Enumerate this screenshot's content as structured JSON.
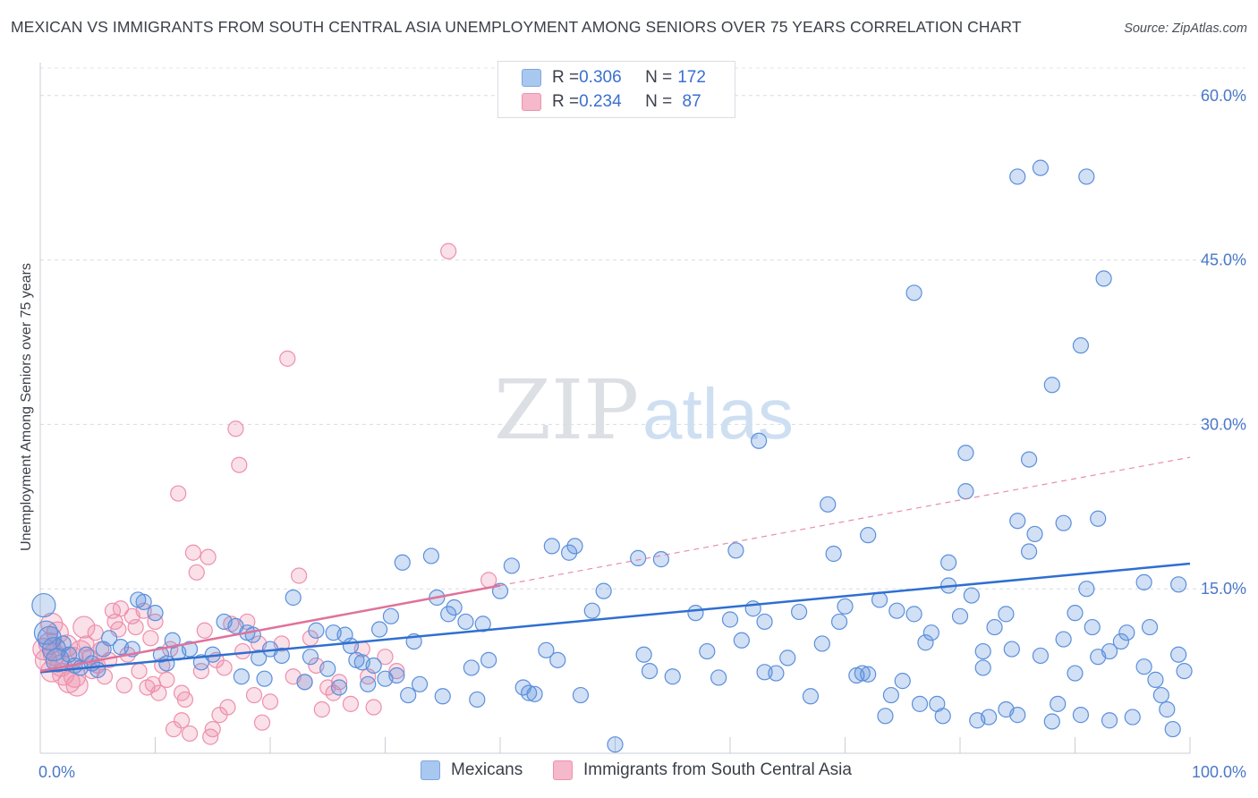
{
  "title": "MEXICAN VS IMMIGRANTS FROM SOUTH CENTRAL ASIA UNEMPLOYMENT AMONG SENIORS OVER 75 YEARS CORRELATION CHART",
  "source": "Source: ZipAtlas.com",
  "watermark": {
    "zip": "ZIP",
    "atlas": "atlas"
  },
  "legend": {
    "rows": [
      {
        "r_label": "R = ",
        "r_value": "0.306",
        "n_label": "N = ",
        "n_value": "172",
        "color": "#a8c8f0"
      },
      {
        "r_label": "R = ",
        "r_value": "0.234",
        "n_label": "N = ",
        "n_value": " 87",
        "color": "#f6b8cb"
      }
    ]
  },
  "bottom_legend": [
    {
      "label": "Mexicans",
      "color": "#a8c8f0"
    },
    {
      "label": "Immigrants from South Central Asia",
      "color": "#f6b8cb"
    }
  ],
  "chart_data": {
    "type": "scatter",
    "title": "MEXICAN VS IMMIGRANTS FROM SOUTH CENTRAL ASIA UNEMPLOYMENT AMONG SENIORS OVER 75 YEARS CORRELATION CHART",
    "xlabel": "",
    "ylabel": "Unemployment Among Seniors over 75 years",
    "xlim": [
      0,
      100
    ],
    "ylim": [
      0,
      63
    ],
    "y_ticks": [
      15,
      30,
      45,
      60
    ],
    "y_tick_labels": [
      "15.0%",
      "30.0%",
      "45.0%",
      "60.0%"
    ],
    "x_tick_labels": [
      "0.0%",
      "100.0%"
    ],
    "grid": "horizontal-dashed",
    "legend_position": "top-center",
    "colors": {
      "mexicans": "#5b8fdc",
      "immigrants": "#ee8fab",
      "mex_line": "#2f6fd0",
      "imm_line": "#e0729a"
    },
    "series": [
      {
        "name": "Mexicans",
        "trend": {
          "x": [
            0,
            100
          ],
          "y": [
            7.4,
            17.3
          ]
        },
        "points": [
          [
            0.3,
            13.5
          ],
          [
            0.5,
            11.0
          ],
          [
            0.8,
            10.5
          ],
          [
            1.2,
            9.5
          ],
          [
            1.5,
            8.5
          ],
          [
            2.0,
            10.0
          ],
          [
            2.5,
            9.0
          ],
          [
            3.0,
            8.0
          ],
          [
            3.5,
            7.8
          ],
          [
            4.0,
            9.0
          ],
          [
            4.5,
            8.2
          ],
          [
            5.0,
            7.6
          ],
          [
            5.5,
            9.5
          ],
          [
            6.0,
            10.5
          ],
          [
            7.0,
            9.7
          ],
          [
            8.0,
            9.5
          ],
          [
            8.5,
            14.0
          ],
          [
            9.0,
            13.8
          ],
          [
            10.0,
            12.8
          ],
          [
            10.5,
            9.0
          ],
          [
            11.0,
            8.2
          ],
          [
            11.5,
            10.3
          ],
          [
            12.0,
            9.2
          ],
          [
            13.0,
            9.5
          ],
          [
            14.0,
            8.3
          ],
          [
            15.0,
            9.0
          ],
          [
            16.0,
            12.0
          ],
          [
            17.0,
            11.6
          ],
          [
            17.5,
            7.0
          ],
          [
            18.0,
            11.0
          ],
          [
            18.5,
            10.8
          ],
          [
            19.5,
            6.8
          ],
          [
            19.0,
            8.7
          ],
          [
            20.0,
            9.5
          ],
          [
            21.0,
            8.9
          ],
          [
            22.0,
            14.2
          ],
          [
            23.0,
            6.5
          ],
          [
            23.5,
            8.8
          ],
          [
            24.0,
            11.2
          ],
          [
            25.0,
            7.7
          ],
          [
            25.5,
            11.0
          ],
          [
            26.0,
            6.0
          ],
          [
            26.5,
            10.8
          ],
          [
            27.0,
            9.8
          ],
          [
            27.5,
            8.5
          ],
          [
            28.0,
            8.3
          ],
          [
            28.5,
            6.3
          ],
          [
            29.0,
            8.0
          ],
          [
            29.5,
            11.3
          ],
          [
            30.0,
            6.8
          ],
          [
            30.5,
            12.5
          ],
          [
            31.0,
            7.1
          ],
          [
            31.5,
            17.4
          ],
          [
            32.0,
            5.3
          ],
          [
            32.5,
            10.2
          ],
          [
            33.0,
            6.3
          ],
          [
            34.0,
            18.0
          ],
          [
            34.5,
            14.2
          ],
          [
            35.0,
            5.2
          ],
          [
            35.5,
            12.7
          ],
          [
            36.0,
            13.3
          ],
          [
            37.0,
            12.0
          ],
          [
            37.5,
            7.8
          ],
          [
            38.0,
            4.9
          ],
          [
            38.5,
            11.8
          ],
          [
            39.0,
            8.5
          ],
          [
            40.0,
            14.8
          ],
          [
            41.0,
            17.1
          ],
          [
            42.0,
            6.0
          ],
          [
            42.5,
            5.5
          ],
          [
            43.0,
            5.4
          ],
          [
            44.0,
            9.4
          ],
          [
            44.5,
            18.9
          ],
          [
            45.0,
            8.5
          ],
          [
            46.0,
            18.3
          ],
          [
            46.5,
            18.9
          ],
          [
            47.0,
            5.3
          ],
          [
            48.0,
            13.0
          ],
          [
            49.0,
            14.8
          ],
          [
            50.0,
            0.8
          ],
          [
            52.0,
            17.8
          ],
          [
            52.5,
            9.0
          ],
          [
            53.0,
            7.5
          ],
          [
            54.0,
            17.7
          ],
          [
            55.0,
            7.0
          ],
          [
            57.0,
            12.8
          ],
          [
            58.0,
            9.3
          ],
          [
            59.0,
            6.9
          ],
          [
            60.0,
            12.2
          ],
          [
            61.0,
            10.3
          ],
          [
            62.0,
            13.2
          ],
          [
            63.0,
            7.4
          ],
          [
            64.0,
            7.3
          ],
          [
            65.0,
            8.7
          ],
          [
            66.0,
            12.9
          ],
          [
            67.0,
            5.2
          ],
          [
            68.0,
            10.0
          ],
          [
            68.5,
            22.7
          ],
          [
            69.0,
            18.2
          ],
          [
            69.5,
            12.0
          ],
          [
            70.0,
            13.4
          ],
          [
            71.0,
            7.1
          ],
          [
            72.0,
            7.2
          ],
          [
            73.0,
            14.0
          ],
          [
            73.5,
            3.4
          ],
          [
            74.0,
            5.3
          ],
          [
            74.5,
            13.0
          ],
          [
            75.0,
            6.6
          ],
          [
            76.0,
            12.7
          ],
          [
            76.5,
            4.5
          ],
          [
            77.0,
            10.1
          ],
          [
            78.0,
            4.5
          ],
          [
            78.5,
            3.4
          ],
          [
            79.0,
            15.3
          ],
          [
            80.0,
            12.5
          ],
          [
            81.0,
            14.4
          ],
          [
            81.5,
            3.0
          ],
          [
            82.0,
            9.3
          ],
          [
            82.5,
            3.3
          ],
          [
            83.0,
            11.5
          ],
          [
            84.0,
            4.0
          ],
          [
            84.5,
            9.5
          ],
          [
            85.0,
            3.5
          ],
          [
            86.0,
            18.4
          ],
          [
            86.5,
            20.0
          ],
          [
            87.0,
            8.9
          ],
          [
            88.0,
            2.9
          ],
          [
            89.0,
            10.4
          ],
          [
            90.0,
            7.3
          ],
          [
            90.5,
            3.5
          ],
          [
            91.0,
            15.0
          ],
          [
            91.5,
            11.5
          ],
          [
            92.0,
            8.8
          ],
          [
            93.0,
            3.0
          ],
          [
            94.0,
            10.2
          ],
          [
            94.5,
            11.0
          ],
          [
            95.0,
            3.3
          ],
          [
            96.0,
            15.6
          ],
          [
            96.5,
            11.5
          ],
          [
            97.5,
            5.3
          ],
          [
            98.0,
            4.0
          ],
          [
            98.5,
            2.2
          ],
          [
            99.0,
            15.4
          ],
          [
            99.5,
            7.5
          ],
          [
            80.5,
            27.4
          ],
          [
            86.0,
            26.8
          ],
          [
            88.0,
            33.6
          ],
          [
            62.5,
            28.5
          ],
          [
            76.0,
            42.0
          ],
          [
            80.5,
            23.9
          ],
          [
            85.0,
            21.2
          ],
          [
            89.0,
            21.0
          ],
          [
            92.0,
            21.4
          ],
          [
            79.0,
            17.4
          ],
          [
            85.0,
            52.6
          ],
          [
            87.0,
            53.4
          ],
          [
            91.0,
            52.6
          ],
          [
            92.5,
            43.3
          ],
          [
            90.5,
            37.2
          ],
          [
            90.0,
            12.8
          ],
          [
            93.0,
            9.3
          ],
          [
            96.0,
            7.9
          ],
          [
            97.0,
            6.7
          ],
          [
            84.0,
            12.7
          ],
          [
            82.0,
            7.8
          ],
          [
            88.5,
            4.5
          ],
          [
            77.5,
            11.0
          ],
          [
            71.5,
            7.3
          ],
          [
            72.0,
            19.9
          ],
          [
            99.0,
            9.0
          ],
          [
            63.0,
            12.0
          ],
          [
            60.5,
            18.5
          ]
        ]
      },
      {
        "name": "Immigrants from South Central Asia",
        "trend": {
          "x": [
            0,
            40
          ],
          "y": [
            7.5,
            15.3
          ]
        },
        "points": [
          [
            0.3,
            9.5
          ],
          [
            0.5,
            8.5
          ],
          [
            0.8,
            10.0
          ],
          [
            1.0,
            7.5
          ],
          [
            1.2,
            9.0
          ],
          [
            1.5,
            11.0
          ],
          [
            1.8,
            8.0
          ],
          [
            2.0,
            7.2
          ],
          [
            2.3,
            9.8
          ],
          [
            2.5,
            6.5
          ],
          [
            2.8,
            8.7
          ],
          [
            3.0,
            7.0
          ],
          [
            3.2,
            6.2
          ],
          [
            3.5,
            9.3
          ],
          [
            3.8,
            11.5
          ],
          [
            4.0,
            10.0
          ],
          [
            4.3,
            8.8
          ],
          [
            4.5,
            7.5
          ],
          [
            4.8,
            11.0
          ],
          [
            5.0,
            8.0
          ],
          [
            5.3,
            9.5
          ],
          [
            5.6,
            7.0
          ],
          [
            6.0,
            8.5
          ],
          [
            6.3,
            13.0
          ],
          [
            6.5,
            12.0
          ],
          [
            6.8,
            11.3
          ],
          [
            7.0,
            13.2
          ],
          [
            7.3,
            6.2
          ],
          [
            7.6,
            9.0
          ],
          [
            8.0,
            12.5
          ],
          [
            8.3,
            11.5
          ],
          [
            8.6,
            7.5
          ],
          [
            9.0,
            13.0
          ],
          [
            9.3,
            6.0
          ],
          [
            9.6,
            10.5
          ],
          [
            10.0,
            12.0
          ],
          [
            10.3,
            5.5
          ],
          [
            10.6,
            8.0
          ],
          [
            11.0,
            6.7
          ],
          [
            11.3,
            9.5
          ],
          [
            11.6,
            2.2
          ],
          [
            12.0,
            23.7
          ],
          [
            12.3,
            5.5
          ],
          [
            12.6,
            4.9
          ],
          [
            13.0,
            1.8
          ],
          [
            13.3,
            18.3
          ],
          [
            13.6,
            16.5
          ],
          [
            14.0,
            7.5
          ],
          [
            14.3,
            11.2
          ],
          [
            14.6,
            17.9
          ],
          [
            15.0,
            2.2
          ],
          [
            15.3,
            8.5
          ],
          [
            15.6,
            3.5
          ],
          [
            16.0,
            7.8
          ],
          [
            16.3,
            4.2
          ],
          [
            16.6,
            11.8
          ],
          [
            17.0,
            29.6
          ],
          [
            17.3,
            26.3
          ],
          [
            17.6,
            9.3
          ],
          [
            18.0,
            12.0
          ],
          [
            18.6,
            5.3
          ],
          [
            19.0,
            10.0
          ],
          [
            19.3,
            2.8
          ],
          [
            20.0,
            4.7
          ],
          [
            21.0,
            10.0
          ],
          [
            21.5,
            36.0
          ],
          [
            22.0,
            7.0
          ],
          [
            22.5,
            16.2
          ],
          [
            23.0,
            6.5
          ],
          [
            23.5,
            10.5
          ],
          [
            24.0,
            8.0
          ],
          [
            24.5,
            4.0
          ],
          [
            25.0,
            6.0
          ],
          [
            25.5,
            5.5
          ],
          [
            26.0,
            6.5
          ],
          [
            27.0,
            4.5
          ],
          [
            28.0,
            9.5
          ],
          [
            28.5,
            7.0
          ],
          [
            29.0,
            4.2
          ],
          [
            30.0,
            8.8
          ],
          [
            31.0,
            7.5
          ],
          [
            35.5,
            45.8
          ],
          [
            39.0,
            15.8
          ],
          [
            12.3,
            3.0
          ],
          [
            9.8,
            6.3
          ],
          [
            14.8,
            1.5
          ],
          [
            1.0,
            11.8
          ]
        ]
      }
    ]
  }
}
